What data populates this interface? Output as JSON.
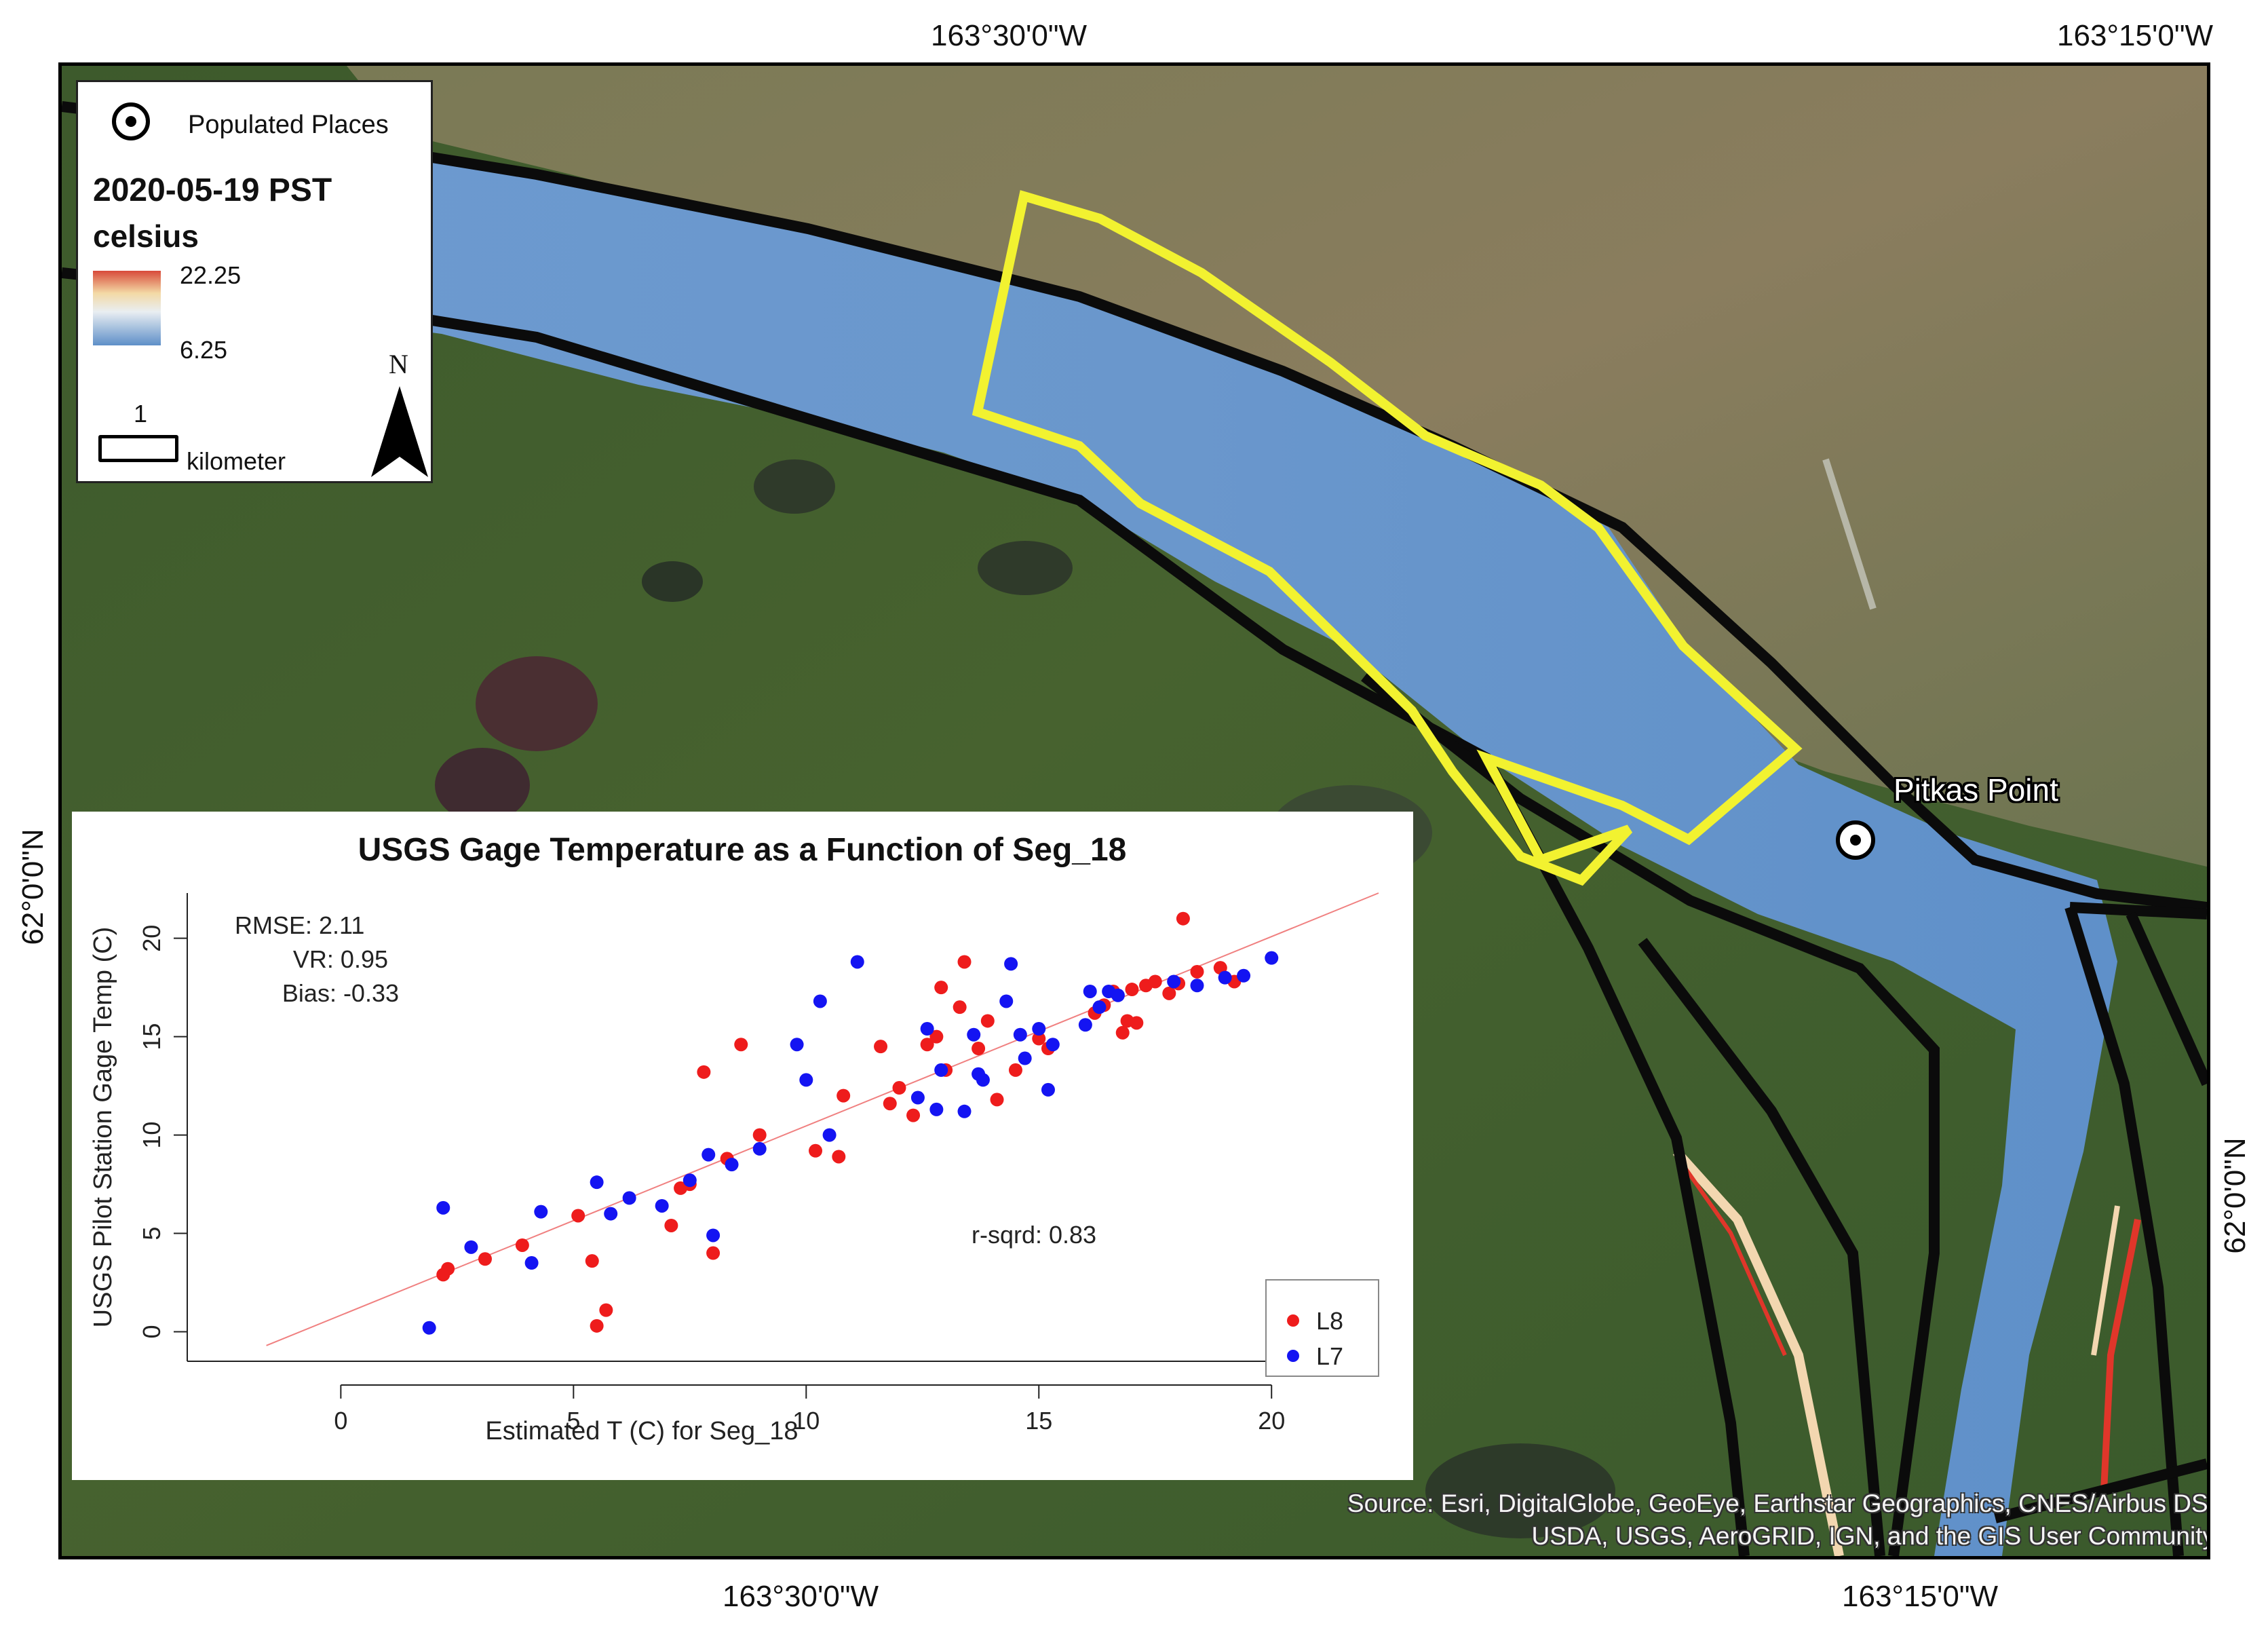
{
  "map": {
    "coordinates": {
      "top_left": "163°30'0\"W",
      "top_right": "163°15'0\"W",
      "bottom_left": "163°30'0\"W",
      "bottom_right": "163°15'0\"W",
      "left_lat": "62°0'0\"N",
      "right_lat": "62°0'0\"N"
    },
    "place": {
      "label": "Pitkas Point",
      "icon": "populated-place-icon"
    },
    "source": {
      "line1": "Source: Esri, DigitalGlobe, GeoEye, Earthstar Geographics, CNES/Airbus DS,",
      "line2": "USDA, USGS, AeroGRID, IGN, and the GIS User Community"
    },
    "colors": {
      "water_cold": "#6b98cc",
      "water_warm": "#e0362a",
      "segment_outline": "#f2f230",
      "boundary": "#0b0b0b"
    }
  },
  "legend": {
    "populated_places_label": "Populated Places",
    "date_label": "2020-05-19 PST",
    "unit_label": "celsius",
    "max_value": "22.25",
    "min_value": "6.25",
    "scale_value": "1",
    "scale_unit": "kilometer",
    "north_label": "N",
    "ramp": [
      "#d84a3a",
      "#f3d9a5",
      "#e9eef2",
      "#5e8fc8"
    ]
  },
  "chart_data": {
    "type": "scatter",
    "title": "USGS Gage Temperature as a Function of Seg_18",
    "xlabel": "Estimated T (C) for Seg_18",
    "ylabel": "USGS Pilot Station Gage Temp (C)",
    "xlim": [
      -3.3,
      22.3
    ],
    "ylim": [
      -1.5,
      22.3
    ],
    "xticks": [
      0,
      5,
      10,
      15,
      20
    ],
    "yticks": [
      0,
      5,
      10,
      15,
      20
    ],
    "grid": false,
    "legend_position": "bottom-right",
    "stats": {
      "rmse": "RMSE: 2.11",
      "vr": "VR: 0.95",
      "bias": "Bias: -0.33",
      "rsqrd": "r-sqrd: 0.83"
    },
    "fit_line": {
      "x": [
        -1.6,
        22.3
      ],
      "y": [
        -0.7,
        22.3
      ],
      "color": "#f08080"
    },
    "series": [
      {
        "name": "L8",
        "color": "#ee1c1c",
        "points": [
          [
            2.2,
            2.9
          ],
          [
            2.3,
            3.2
          ],
          [
            3.1,
            3.7
          ],
          [
            3.9,
            4.4
          ],
          [
            5.1,
            5.9
          ],
          [
            5.4,
            3.6
          ],
          [
            5.5,
            0.3
          ],
          [
            5.7,
            1.1
          ],
          [
            7.1,
            5.4
          ],
          [
            7.3,
            7.3
          ],
          [
            7.5,
            7.5
          ],
          [
            7.8,
            13.2
          ],
          [
            8.0,
            4.0
          ],
          [
            8.3,
            8.8
          ],
          [
            8.6,
            14.6
          ],
          [
            9.0,
            10.0
          ],
          [
            10.2,
            9.2
          ],
          [
            10.7,
            8.9
          ],
          [
            10.8,
            12.0
          ],
          [
            11.6,
            14.5
          ],
          [
            11.8,
            11.6
          ],
          [
            12.0,
            12.4
          ],
          [
            12.3,
            11.0
          ],
          [
            12.6,
            14.6
          ],
          [
            12.8,
            15.0
          ],
          [
            12.9,
            17.5
          ],
          [
            13.0,
            13.3
          ],
          [
            13.3,
            16.5
          ],
          [
            13.4,
            18.8
          ],
          [
            13.7,
            14.4
          ],
          [
            13.9,
            15.8
          ],
          [
            14.1,
            11.8
          ],
          [
            14.5,
            13.3
          ],
          [
            15.0,
            14.9
          ],
          [
            15.2,
            14.4
          ],
          [
            16.2,
            16.2
          ],
          [
            16.4,
            16.6
          ],
          [
            16.6,
            17.3
          ],
          [
            16.8,
            15.2
          ],
          [
            16.9,
            15.8
          ],
          [
            17.0,
            17.4
          ],
          [
            17.1,
            15.7
          ],
          [
            17.3,
            17.6
          ],
          [
            17.8,
            17.2
          ],
          [
            18.0,
            17.7
          ],
          [
            18.1,
            21.0
          ],
          [
            18.4,
            18.3
          ],
          [
            18.9,
            18.5
          ],
          [
            19.2,
            17.8
          ],
          [
            17.5,
            17.8
          ]
        ]
      },
      {
        "name": "L7",
        "color": "#1414f2",
        "points": [
          [
            1.9,
            0.2
          ],
          [
            2.2,
            6.3
          ],
          [
            2.8,
            4.3
          ],
          [
            4.1,
            3.5
          ],
          [
            4.3,
            6.1
          ],
          [
            5.5,
            7.6
          ],
          [
            5.8,
            6.0
          ],
          [
            6.2,
            6.8
          ],
          [
            6.9,
            6.4
          ],
          [
            7.5,
            7.7
          ],
          [
            7.9,
            9.0
          ],
          [
            8.0,
            4.9
          ],
          [
            8.4,
            8.5
          ],
          [
            9.0,
            9.3
          ],
          [
            9.8,
            14.6
          ],
          [
            10.0,
            12.8
          ],
          [
            10.3,
            16.8
          ],
          [
            10.5,
            10.0
          ],
          [
            11.1,
            18.8
          ],
          [
            12.4,
            11.9
          ],
          [
            12.6,
            15.4
          ],
          [
            12.8,
            11.3
          ],
          [
            12.9,
            13.3
          ],
          [
            13.4,
            11.2
          ],
          [
            13.6,
            15.1
          ],
          [
            13.7,
            13.1
          ],
          [
            13.8,
            12.8
          ],
          [
            14.3,
            16.8
          ],
          [
            14.4,
            18.7
          ],
          [
            14.6,
            15.1
          ],
          [
            14.7,
            13.9
          ],
          [
            15.0,
            15.4
          ],
          [
            15.2,
            12.3
          ],
          [
            15.3,
            14.6
          ],
          [
            16.1,
            17.3
          ],
          [
            16.3,
            16.5
          ],
          [
            16.5,
            17.3
          ],
          [
            16.7,
            17.1
          ],
          [
            17.9,
            17.8
          ],
          [
            18.4,
            17.6
          ],
          [
            19.0,
            18.0
          ],
          [
            19.4,
            18.1
          ],
          [
            20.0,
            19.0
          ],
          [
            16.0,
            15.6
          ]
        ]
      }
    ]
  }
}
